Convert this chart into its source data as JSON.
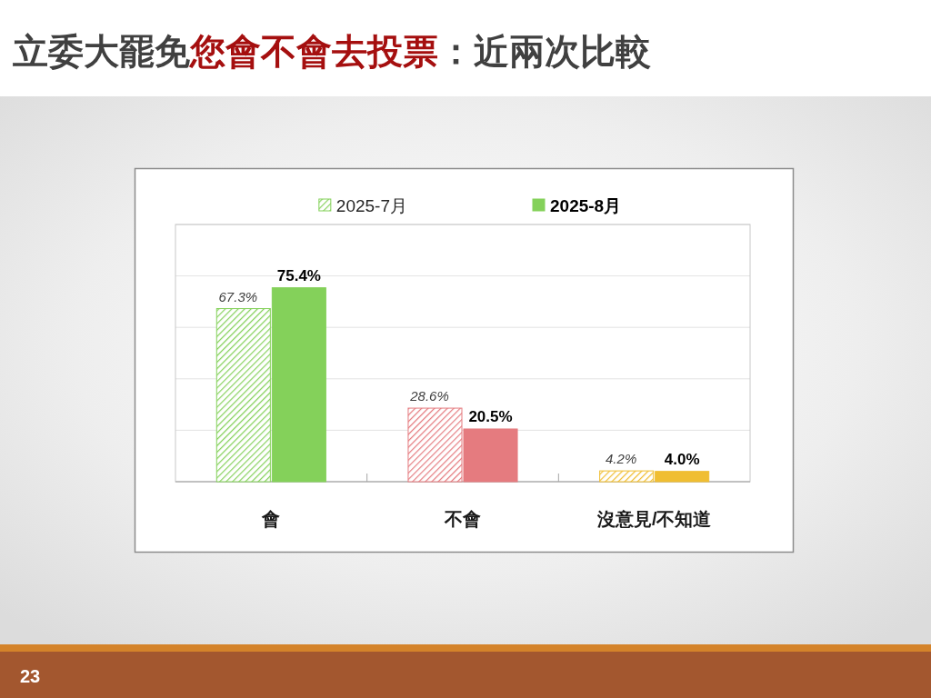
{
  "chart_data": {
    "type": "bar",
    "title": "立委大罷免您會不會去投票：近兩次比較",
    "categories": [
      "會",
      "不會",
      "沒意見/不知道"
    ],
    "series": [
      {
        "name": "2025-7月",
        "color": "#84d15a",
        "colors": [
          "#84d15a",
          "#e57b7f",
          "#f0be32"
        ],
        "values": [
          67.3,
          28.6,
          4.2
        ],
        "value_labels": [
          "67.3%",
          "28.6%",
          "4.2%"
        ]
      },
      {
        "name": "2025-8月",
        "color": "#84d15a",
        "colors": [
          "#84d15a",
          "#e57b7f",
          "#f0be32"
        ],
        "values": [
          75.4,
          20.5,
          4.0
        ],
        "value_labels": [
          "75.4%",
          "20.5%",
          "4.0%"
        ]
      }
    ],
    "ylim": [
      0,
      100
    ],
    "yticks": [
      {
        "value": 0,
        "label": null
      },
      {
        "value": 20,
        "label": null
      },
      {
        "value": 40,
        "label": null
      },
      {
        "value": 60,
        "label": null
      },
      {
        "value": 80,
        "label": null
      },
      {
        "value": 100,
        "label": null
      }
    ],
    "grid": "y",
    "legend": "top",
    "tick_labels": "x",
    "annotations": [
      "23"
    ]
  }
}
